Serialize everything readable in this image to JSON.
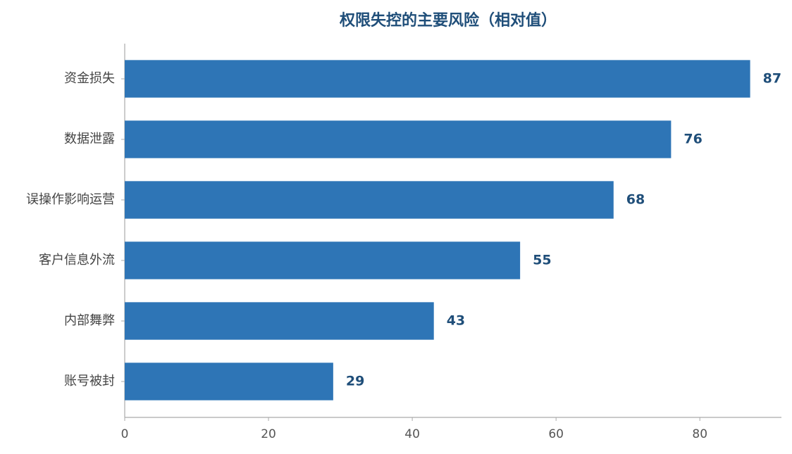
{
  "chart_data": {
    "type": "barh",
    "title": "权限失控的主要风险（相对值）",
    "categories": [
      "资金损失",
      "数据泄露",
      "误操作影响运营",
      "客户信息外流",
      "内部舞弊",
      "账号被封"
    ],
    "values": [
      87,
      76,
      68,
      55,
      43,
      29
    ],
    "color": "#2e75b6",
    "label_color": "#1f4e79",
    "xlim": [
      0,
      91.35
    ],
    "xticks": [
      0,
      20,
      40,
      60,
      80
    ],
    "grid": false
  }
}
